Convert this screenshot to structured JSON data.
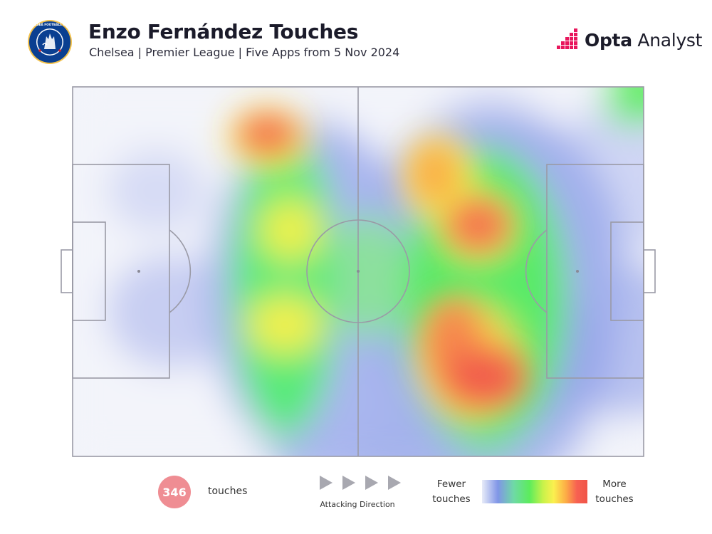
{
  "header": {
    "crest_text": "CHELSEA FOOTBALL CLUB",
    "title": "Enzo Fernández Touches",
    "subtitle": "Chelsea | Premier League | Five Apps from 5 Nov 2024"
  },
  "brand": {
    "name_bold": "Opta",
    "name_regular": " Analyst",
    "color": "#e8175d"
  },
  "chart_data": {
    "type": "heatmap",
    "title": "Enzo Fernández Touches",
    "subtitle": "Chelsea | Premier League | Five Apps from 5 Nov 2024",
    "pitch": {
      "length": 105,
      "width": 68,
      "attacking_direction": "left-to-right"
    },
    "hotspots": [
      {
        "x": 36,
        "y": 60,
        "intensity": 1.0
      },
      {
        "x": 39,
        "y": 42,
        "intensity": 0.75
      },
      {
        "x": 39,
        "y": 24,
        "intensity": 0.8
      },
      {
        "x": 64,
        "y": 54,
        "intensity": 0.9
      },
      {
        "x": 75,
        "y": 42,
        "intensity": 0.95
      },
      {
        "x": 70,
        "y": 22,
        "intensity": 1.0
      },
      {
        "x": 78,
        "y": 14,
        "intensity": 0.95
      },
      {
        "x": 101,
        "y": 66,
        "intensity": 0.6
      }
    ],
    "total_touches": 346,
    "scale": {
      "low_label": "Fewer touches",
      "high_label": "More touches",
      "colors": [
        "#e7ebf8",
        "#8095e7",
        "#5cec5c",
        "#fbf04f",
        "#fcaa46",
        "#f05448"
      ]
    }
  },
  "legend": {
    "count": "346",
    "count_label": "touches",
    "direction_label": "Attacking Direction",
    "scale_low": [
      "Fewer",
      "touches"
    ],
    "scale_high": [
      "More",
      "touches"
    ]
  }
}
